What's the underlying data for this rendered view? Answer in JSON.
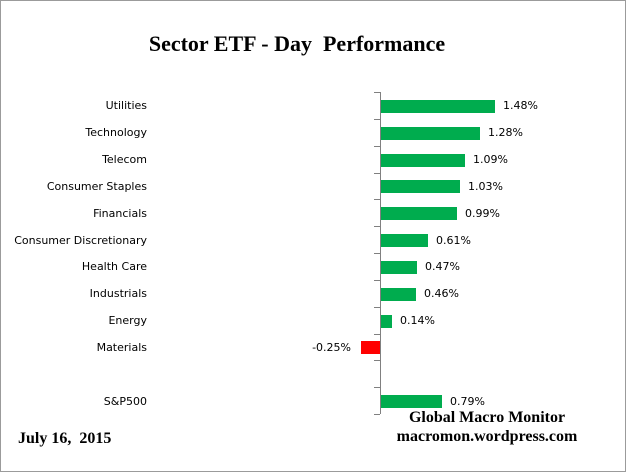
{
  "window": {
    "background_color": "#FFFFFF",
    "border_color": "#9B9B9B"
  },
  "chart_data": {
    "type": "bar",
    "orientation": "horizontal",
    "title": "Sector ETF - Day  Performance",
    "categories": [
      "Utilities",
      "Technology",
      "Telecom",
      "Consumer Staples",
      "Financials",
      "Consumer Discretionary",
      "Health Care",
      "Industrials",
      "Energy",
      "Materials",
      "S&P500"
    ],
    "values": [
      1.48,
      1.28,
      1.09,
      1.03,
      0.99,
      0.61,
      0.47,
      0.46,
      0.14,
      -0.25,
      0.79
    ],
    "value_labels": [
      "1.48%",
      "1.28%",
      "1.09%",
      "1.03%",
      "0.99%",
      "0.61%",
      "0.47%",
      "0.46%",
      "0.14%",
      "-0.25%",
      "0.79%"
    ],
    "positive_color": "#00AC4E",
    "negative_color": "#FF0000",
    "axis_color": "#808080",
    "xlabel": "",
    "ylabel": "",
    "xlim": [
      -0.5,
      2.05
    ],
    "gridlines": false,
    "legend": false,
    "gap_before_category": "S&P500"
  },
  "footer": {
    "date": "July 16,  2015",
    "brand_line1": "Global Macro Monitor",
    "brand_line2": "macromon.wordpress.com"
  }
}
